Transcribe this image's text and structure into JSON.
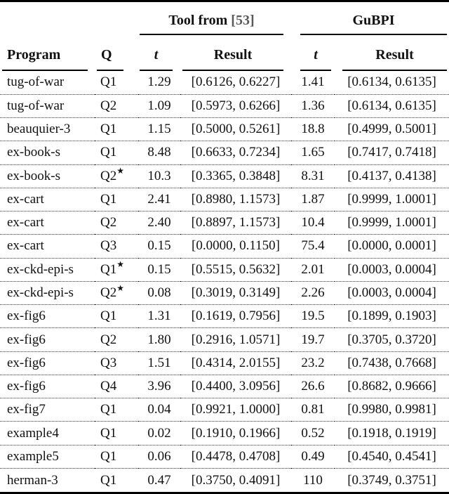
{
  "table": {
    "groups": {
      "tool": {
        "label": "Tool from",
        "citation": "[53]"
      },
      "gubpi": {
        "label": "GuBPI"
      }
    },
    "columns": {
      "program": "Program",
      "q": "Q",
      "t_tool": "t",
      "result_tool": "Result",
      "t_gubpi": "t",
      "result_gubpi": "Result"
    },
    "star_symbol": "★",
    "rows": [
      {
        "program": "tug-of-war",
        "q": "Q1",
        "star": false,
        "t_tool": "1.29",
        "result_tool": "[0.6126, 0.6227]",
        "t_gubpi": "1.41",
        "result_gubpi": "[0.6134, 0.6135]"
      },
      {
        "program": "tug-of-war",
        "q": "Q2",
        "star": false,
        "t_tool": "1.09",
        "result_tool": "[0.5973, 0.6266]",
        "t_gubpi": "1.36",
        "result_gubpi": "[0.6134, 0.6135]"
      },
      {
        "program": "beauquier-3",
        "q": "Q1",
        "star": false,
        "t_tool": "1.15",
        "result_tool": "[0.5000, 0.5261]",
        "t_gubpi": "18.8",
        "result_gubpi": "[0.4999, 0.5001]"
      },
      {
        "program": "ex-book-s",
        "q": "Q1",
        "star": false,
        "t_tool": "8.48",
        "result_tool": "[0.6633, 0.7234]",
        "t_gubpi": "1.65",
        "result_gubpi": "[0.7417, 0.7418]"
      },
      {
        "program": "ex-book-s",
        "q": "Q2",
        "star": true,
        "t_tool": "10.3",
        "result_tool": "[0.3365, 0.3848]",
        "t_gubpi": "8.31",
        "result_gubpi": "[0.4137, 0.4138]"
      },
      {
        "program": "ex-cart",
        "q": "Q1",
        "star": false,
        "t_tool": "2.41",
        "result_tool": "[0.8980, 1.1573]",
        "t_gubpi": "1.87",
        "result_gubpi": "[0.9999, 1.0001]"
      },
      {
        "program": "ex-cart",
        "q": "Q2",
        "star": false,
        "t_tool": "2.40",
        "result_tool": "[0.8897, 1.1573]",
        "t_gubpi": "10.4",
        "result_gubpi": "[0.9999, 1.0001]"
      },
      {
        "program": "ex-cart",
        "q": "Q3",
        "star": false,
        "t_tool": "0.15",
        "result_tool": "[0.0000, 0.1150]",
        "t_gubpi": "75.4",
        "result_gubpi": "[0.0000, 0.0001]"
      },
      {
        "program": "ex-ckd-epi-s",
        "q": "Q1",
        "star": true,
        "t_tool": "0.15",
        "result_tool": "[0.5515, 0.5632]",
        "t_gubpi": "2.01",
        "result_gubpi": "[0.0003, 0.0004]"
      },
      {
        "program": "ex-ckd-epi-s",
        "q": "Q2",
        "star": true,
        "t_tool": "0.08",
        "result_tool": "[0.3019, 0.3149]",
        "t_gubpi": "2.26",
        "result_gubpi": "[0.0003, 0.0004]"
      },
      {
        "program": "ex-fig6",
        "q": "Q1",
        "star": false,
        "t_tool": "1.31",
        "result_tool": "[0.1619, 0.7956]",
        "t_gubpi": "19.5",
        "result_gubpi": "[0.1899, 0.1903]"
      },
      {
        "program": "ex-fig6",
        "q": "Q2",
        "star": false,
        "t_tool": "1.80",
        "result_tool": "[0.2916, 1.0571]",
        "t_gubpi": "19.7",
        "result_gubpi": "[0.3705, 0.3720]"
      },
      {
        "program": "ex-fig6",
        "q": "Q3",
        "star": false,
        "t_tool": "1.51",
        "result_tool": "[0.4314, 2.0155]",
        "t_gubpi": "23.2",
        "result_gubpi": "[0.7438, 0.7668]"
      },
      {
        "program": "ex-fig6",
        "q": "Q4",
        "star": false,
        "t_tool": "3.96",
        "result_tool": "[0.4400, 3.0956]",
        "t_gubpi": "26.6",
        "result_gubpi": "[0.8682, 0.9666]"
      },
      {
        "program": "ex-fig7",
        "q": "Q1",
        "star": false,
        "t_tool": "0.04",
        "result_tool": "[0.9921, 1.0000]",
        "t_gubpi": "0.81",
        "result_gubpi": "[0.9980, 0.9981]"
      },
      {
        "program": "example4",
        "q": "Q1",
        "star": false,
        "t_tool": "0.02",
        "result_tool": "[0.1910, 0.1966]",
        "t_gubpi": "0.52",
        "result_gubpi": "[0.1918, 0.1919]"
      },
      {
        "program": "example5",
        "q": "Q1",
        "star": false,
        "t_tool": "0.06",
        "result_tool": "[0.4478, 0.4708]",
        "t_gubpi": "0.49",
        "result_gubpi": "[0.4540, 0.4541]"
      },
      {
        "program": "herman-3",
        "q": "Q1",
        "star": false,
        "t_tool": "0.47",
        "result_tool": "[0.3750, 0.4091]",
        "t_gubpi": "110",
        "result_gubpi": "[0.3749, 0.3751]"
      }
    ]
  },
  "colors": {
    "rule": "#000000",
    "text": "#111111",
    "citation": "#595959"
  }
}
